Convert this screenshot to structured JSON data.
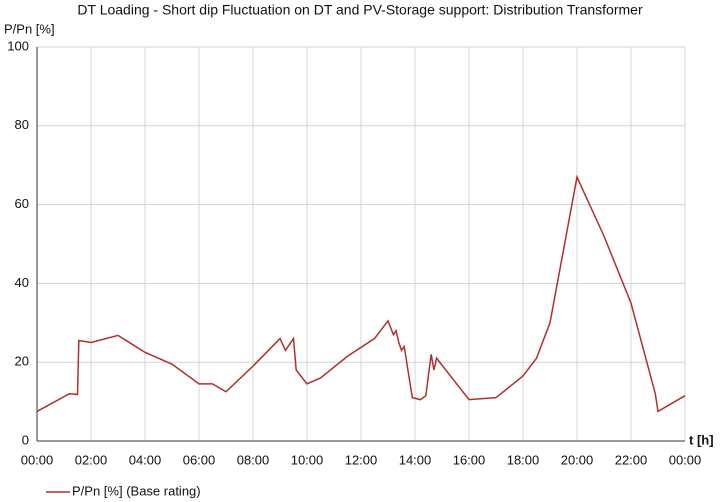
{
  "chart_data": {
    "type": "line",
    "title": "DT Loading - Short dip Fluctuation on DT and PV-Storage support: Distribution Transformer",
    "y_label": "P/Pn [%]",
    "x_label": "t [h]",
    "x": [
      0,
      1.2,
      1.5,
      1.55,
      2,
      3,
      4,
      5,
      6,
      6.5,
      7,
      8,
      9,
      9.2,
      9.5,
      9.6,
      10,
      10.5,
      11.5,
      12.5,
      13,
      13.2,
      13.3,
      13.4,
      13.5,
      13.6,
      13.9,
      14.2,
      14.4,
      14.6,
      14.7,
      14.8,
      16,
      17,
      18,
      18.5,
      19,
      20,
      21,
      22,
      22.9,
      23,
      24
    ],
    "series": [
      {
        "name": "P/Pn [%] (Base rating)",
        "color": "#b0302a",
        "values": [
          7.5,
          12,
          11.8,
          25.5,
          25,
          26.8,
          22.5,
          19.5,
          14.5,
          14.5,
          12.5,
          19,
          26,
          23,
          26,
          18,
          14.5,
          16,
          21.5,
          26,
          30.5,
          27,
          28,
          25,
          23,
          24,
          11,
          10.5,
          11.5,
          22,
          18,
          21,
          10.5,
          11,
          16.5,
          21,
          30,
          67,
          52,
          35,
          12,
          7.5,
          11.5
        ]
      }
    ],
    "xlim": [
      0,
      24
    ],
    "xticks": [
      {
        "value": 0,
        "label": "00:00"
      },
      {
        "value": 2,
        "label": "02:00"
      },
      {
        "value": 4,
        "label": "04:00"
      },
      {
        "value": 6,
        "label": "06:00"
      },
      {
        "value": 8,
        "label": "08:00"
      },
      {
        "value": 10,
        "label": "10:00"
      },
      {
        "value": 12,
        "label": "12:00"
      },
      {
        "value": 14,
        "label": "14:00"
      },
      {
        "value": 16,
        "label": "16:00"
      },
      {
        "value": 18,
        "label": "18:00"
      },
      {
        "value": 20,
        "label": "20:00"
      },
      {
        "value": 22,
        "label": "22:00"
      },
      {
        "value": 24,
        "label": "00:00"
      }
    ],
    "ylim": [
      0,
      100
    ],
    "yticks": [
      0,
      20,
      40,
      60,
      80,
      100
    ],
    "grid": true
  }
}
